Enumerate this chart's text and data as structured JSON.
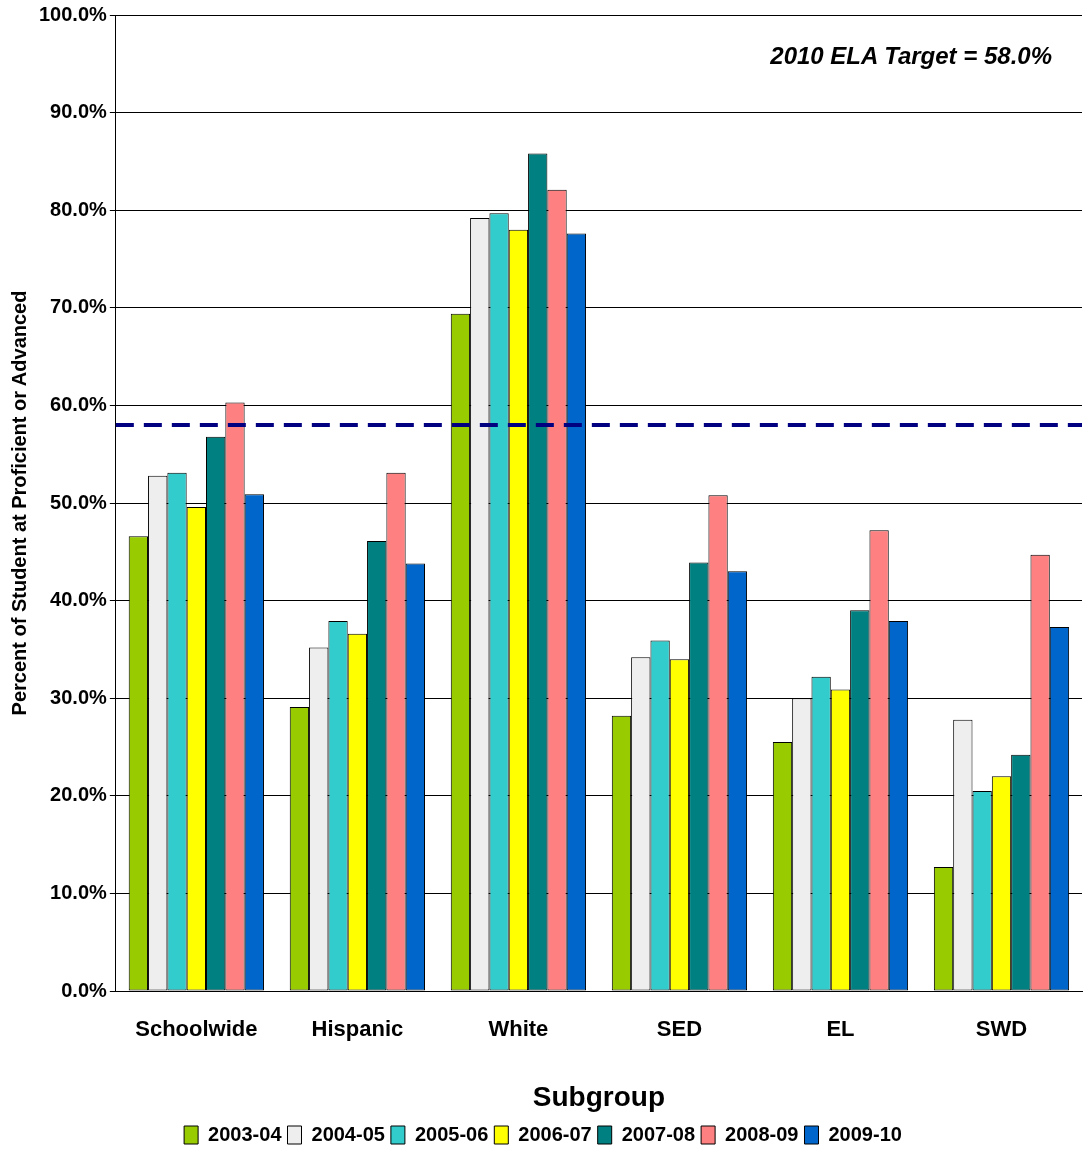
{
  "chart_data": {
    "type": "bar",
    "xlabel": "Subgroup",
    "ylabel": "Percent of Student at Proficient or Advanced",
    "categories": [
      "Schoolwide",
      "Hispanic",
      "White",
      "SED",
      "EL",
      "SWD"
    ],
    "series": [
      {
        "name": "2003-04",
        "color": "#99cc00",
        "values": [
          46.6,
          29.1,
          69.4,
          28.2,
          25.5,
          12.7
        ]
      },
      {
        "name": "2004-05",
        "color": "#eeeeee",
        "values": [
          52.8,
          35.2,
          79.2,
          34.2,
          30.0,
          27.8
        ]
      },
      {
        "name": "2005-06",
        "color": "#33cccc",
        "values": [
          53.1,
          37.9,
          79.7,
          35.9,
          32.2,
          20.5
        ]
      },
      {
        "name": "2006-07",
        "color": "#ffff00",
        "values": [
          49.6,
          36.6,
          78.0,
          34.0,
          30.9,
          22.0
        ]
      },
      {
        "name": "2007-08",
        "color": "#008080",
        "values": [
          56.8,
          46.1,
          85.8,
          43.9,
          39.0,
          24.2
        ]
      },
      {
        "name": "2008-09",
        "color": "#ff8080",
        "values": [
          60.3,
          53.1,
          82.1,
          50.8,
          47.2,
          44.7
        ]
      },
      {
        "name": "2009-10",
        "color": "#0066cc",
        "values": [
          50.9,
          43.8,
          77.6,
          43.0,
          37.9,
          37.3
        ]
      }
    ],
    "ylim": [
      0,
      100
    ],
    "yticks": [
      {
        "value": 0,
        "label": "0.0%"
      },
      {
        "value": 10,
        "label": "10.0%"
      },
      {
        "value": 20,
        "label": "20.0%"
      },
      {
        "value": 30,
        "label": "30.0%"
      },
      {
        "value": 40,
        "label": "40.0%"
      },
      {
        "value": 50,
        "label": "50.0%"
      },
      {
        "value": 60,
        "label": "60.0%"
      },
      {
        "value": 70,
        "label": "70.0%"
      },
      {
        "value": 80,
        "label": "80.0%"
      },
      {
        "value": 90,
        "label": "90.0%"
      },
      {
        "value": 100,
        "label": "100.0%"
      }
    ],
    "ref_lines": [
      {
        "axis": "y",
        "value": 58.0,
        "color": "#000080",
        "line_style": "dashed"
      }
    ],
    "annotations": [
      "2010 ELA Target = 58.0%"
    ],
    "grid": "y",
    "legend": "bottom"
  }
}
